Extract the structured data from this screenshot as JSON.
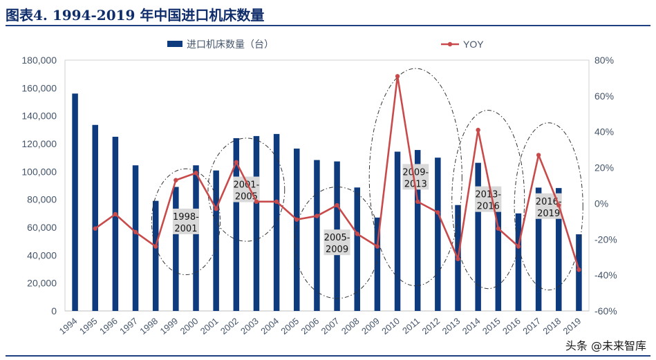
{
  "figure": {
    "title": "图表4.    1994-2019 年中国进口机床数量"
  },
  "watermark": "头条 @未来智库",
  "chart_data": {
    "type": "bar",
    "categories": [
      "1994",
      "1995",
      "1996",
      "1997",
      "1998",
      "1999",
      "2000",
      "2001",
      "2002",
      "2003",
      "2004",
      "2005",
      "2006",
      "2007",
      "2008",
      "2009",
      "2010",
      "2011",
      "2012",
      "2013",
      "2014",
      "2015",
      "2016",
      "2017",
      "2018",
      "2019"
    ],
    "series": [
      {
        "name": "进口机床数量（台）",
        "type": "bar",
        "axis": "left",
        "color": "#0e3a7e",
        "values": [
          156000,
          133500,
          125000,
          104500,
          79000,
          89000,
          104500,
          100800,
          124000,
          125500,
          127000,
          116500,
          108300,
          107300,
          88600,
          67000,
          114300,
          115500,
          110000,
          76000,
          106300,
          86500,
          70000,
          88500,
          88200,
          55000
        ]
      },
      {
        "name": "YOY",
        "type": "line",
        "axis": "right",
        "color": "#c94a4a",
        "values": [
          null,
          -14,
          -6,
          -16,
          -24,
          13,
          17,
          -3,
          23,
          1,
          1,
          -9,
          -7,
          -1,
          -17,
          -24,
          71,
          1,
          -5,
          -31,
          41,
          -14,
          -24,
          27,
          -1,
          -37
        ]
      }
    ],
    "y_left": {
      "ylim": [
        0,
        180000
      ],
      "ticks": [
        "0",
        "20,000",
        "40,000",
        "60,000",
        "80,000",
        "100,000",
        "120,000",
        "140,000",
        "160,000",
        "180,000"
      ]
    },
    "y_right": {
      "ylim": [
        -60,
        80
      ],
      "ticks": [
        "-60%",
        "-40%",
        "-20%",
        "0%",
        "20%",
        "40%",
        "60%",
        "80%"
      ]
    },
    "legend": {
      "position": "top"
    },
    "annotations": [
      {
        "label_line1": "1998-",
        "label_line2": "2001",
        "center_year": 1999.5,
        "center_value": 64000,
        "span_years": 1.7,
        "span_value": 38000
      },
      {
        "label_line1": "2001-",
        "label_line2": "2005",
        "center_year": 2002.5,
        "center_value": 87000,
        "span_years": 1.9,
        "span_value": 37000
      },
      {
        "label_line1": "2005-",
        "label_line2": "2009",
        "center_year": 2007.0,
        "center_value": 49000,
        "span_years": 2.1,
        "span_value": 40000
      },
      {
        "label_line1": "2009-",
        "label_line2": "2013",
        "center_year": 2010.9,
        "center_value": 96000,
        "span_years": 2.3,
        "span_value": 78000
      },
      {
        "label_line1": "2013-",
        "label_line2": "2016",
        "center_year": 2014.5,
        "center_value": 80000,
        "span_years": 1.8,
        "span_value": 64000
      },
      {
        "label_line1": "2016-",
        "label_line2": "2019",
        "center_year": 2017.5,
        "center_value": 75000,
        "span_years": 1.7,
        "span_value": 60000
      }
    ]
  }
}
